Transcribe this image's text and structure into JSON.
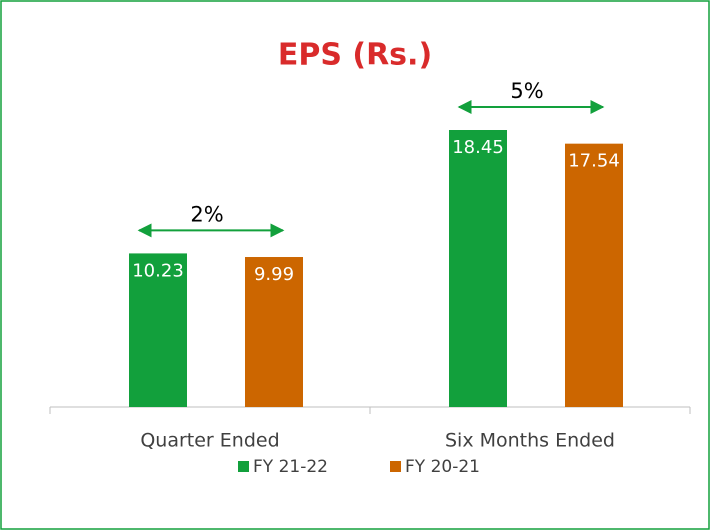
{
  "chart_data": {
    "type": "bar",
    "title": "EPS (Rs.)",
    "categories": [
      "Quarter Ended",
      "Six Months Ended"
    ],
    "series": [
      {
        "name": "FY 21-22",
        "color": "#12a03c",
        "values": [
          10.23,
          18.45
        ]
      },
      {
        "name": "FY 20-21",
        "color": "#cc6600",
        "values": [
          9.99,
          17.54
        ]
      }
    ],
    "annotations": [
      "2%",
      "5%"
    ],
    "annotation_color": "#12a03c",
    "title_color": "#d92b2b"
  }
}
